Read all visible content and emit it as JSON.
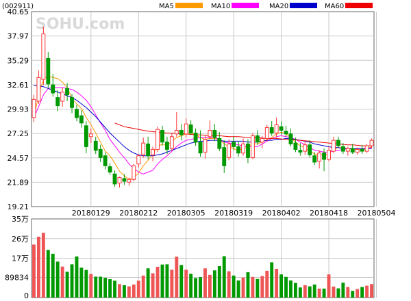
{
  "stock_code": "(002911)",
  "watermark": "SOHU.com",
  "colors": {
    "up": "#ff3333",
    "down": "#009900",
    "grid": "#c8c8c8",
    "frame": "#666666"
  },
  "legend": [
    {
      "label": "MA5",
      "color": "#ff9900"
    },
    {
      "label": "MA10",
      "color": "#ff00ff"
    },
    {
      "label": "MA20",
      "color": "#0000cc"
    },
    {
      "label": "MA60",
      "color": "#ee0000"
    }
  ],
  "chart_data": [
    {
      "type": "candlestick",
      "title": "(002911)",
      "ylim": [
        19.21,
        40.65
      ],
      "yticks": [
        "40.65",
        "37.97",
        "35.29",
        "32.61",
        "29.93",
        "27.25",
        "24.57",
        "21.89",
        "19.21"
      ],
      "xticks": [
        {
          "label": "20180129",
          "index": 12
        },
        {
          "label": "20180212",
          "index": 22
        },
        {
          "label": "20180305",
          "index": 32
        },
        {
          "label": "20180319",
          "index": 42
        },
        {
          "label": "20180402",
          "index": 52
        },
        {
          "label": "20180418",
          "index": 62
        },
        {
          "label": "20180504",
          "index": 72
        }
      ],
      "grid": true,
      "legend_position": "top-right",
      "candles": [
        [
          29.0,
          31.5,
          28.5,
          31.0
        ],
        [
          30.8,
          34.2,
          30.5,
          33.4
        ],
        [
          33.2,
          39.0,
          32.6,
          38.2
        ],
        [
          35.5,
          36.2,
          32.2,
          32.7
        ],
        [
          32.6,
          33.8,
          31.3,
          31.7
        ],
        [
          31.2,
          32.0,
          29.7,
          30.3
        ],
        [
          30.8,
          32.3,
          30.2,
          31.8
        ],
        [
          32.2,
          32.8,
          30.8,
          31.5
        ],
        [
          31.2,
          31.6,
          29.5,
          30.1
        ],
        [
          29.9,
          30.4,
          28.6,
          29.0
        ],
        [
          29.2,
          29.8,
          27.9,
          28.4
        ],
        [
          28.1,
          28.6,
          25.1,
          25.8
        ],
        [
          26.9,
          27.8,
          26.2,
          27.2
        ],
        [
          26.4,
          26.9,
          25.0,
          25.4
        ],
        [
          25.5,
          26.0,
          24.1,
          24.6
        ],
        [
          24.8,
          25.2,
          23.3,
          23.7
        ],
        [
          23.6,
          24.0,
          22.7,
          23.0
        ],
        [
          22.8,
          23.2,
          21.4,
          21.7
        ],
        [
          21.8,
          22.5,
          21.3,
          22.4
        ],
        [
          22.3,
          22.8,
          21.6,
          22.0
        ],
        [
          21.9,
          22.4,
          21.5,
          22.2
        ],
        [
          22.2,
          23.9,
          22.0,
          23.7
        ],
        [
          23.9,
          25.0,
          23.5,
          24.8
        ],
        [
          24.9,
          26.8,
          24.6,
          26.2
        ],
        [
          26.1,
          26.9,
          24.4,
          24.8
        ],
        [
          24.9,
          25.8,
          24.2,
          25.5
        ],
        [
          25.5,
          28.0,
          25.2,
          27.7
        ],
        [
          27.6,
          28.1,
          25.9,
          26.3
        ],
        [
          26.3,
          26.9,
          25.0,
          25.5
        ],
        [
          25.6,
          27.3,
          25.3,
          26.9
        ],
        [
          27.2,
          29.6,
          26.9,
          27.6
        ],
        [
          27.6,
          28.3,
          26.5,
          27.1
        ],
        [
          27.2,
          28.9,
          26.8,
          28.3
        ],
        [
          28.2,
          28.7,
          27.1,
          27.3
        ],
        [
          27.3,
          27.8,
          25.9,
          26.3
        ],
        [
          26.3,
          27.6,
          24.7,
          25.1
        ],
        [
          25.2,
          27.0,
          24.5,
          26.6
        ],
        [
          26.9,
          28.7,
          26.6,
          27.6
        ],
        [
          27.6,
          28.3,
          26.4,
          26.8
        ],
        [
          26.7,
          27.4,
          25.3,
          25.6
        ],
        [
          25.7,
          26.5,
          22.9,
          23.7
        ],
        [
          24.6,
          26.6,
          24.3,
          26.1
        ],
        [
          26.3,
          26.9,
          25.4,
          25.8
        ],
        [
          25.8,
          26.4,
          24.7,
          25.1
        ],
        [
          25.1,
          26.7,
          24.8,
          26.1
        ],
        [
          26.1,
          26.6,
          24.0,
          24.6
        ],
        [
          24.6,
          27.3,
          24.4,
          27.0
        ],
        [
          27.0,
          27.6,
          26.0,
          26.3
        ],
        [
          26.3,
          27.0,
          25.6,
          26.7
        ],
        [
          26.7,
          28.2,
          26.4,
          27.9
        ],
        [
          27.9,
          28.6,
          27.0,
          27.3
        ],
        [
          27.3,
          29.0,
          26.8,
          28.2
        ],
        [
          28.0,
          28.6,
          27.1,
          27.6
        ],
        [
          27.5,
          28.1,
          26.9,
          27.2
        ],
        [
          27.2,
          27.8,
          25.8,
          26.1
        ],
        [
          26.2,
          26.8,
          25.2,
          25.5
        ],
        [
          25.4,
          26.2,
          24.8,
          25.2
        ],
        [
          25.3,
          26.4,
          24.9,
          26.0
        ],
        [
          26.0,
          26.5,
          24.6,
          24.9
        ],
        [
          24.8,
          25.2,
          23.8,
          24.1
        ],
        [
          24.2,
          25.4,
          23.4,
          25.1
        ],
        [
          25.1,
          25.6,
          23.1,
          24.4
        ],
        [
          24.4,
          25.8,
          24.2,
          25.4
        ],
        [
          25.3,
          26.9,
          25.1,
          26.5
        ],
        [
          26.5,
          26.9,
          25.7,
          25.9
        ],
        [
          25.8,
          26.2,
          25.0,
          25.3
        ],
        [
          25.3,
          25.8,
          24.8,
          25.6
        ],
        [
          25.6,
          26.1,
          25.0,
          25.2
        ],
        [
          25.2,
          25.7,
          24.9,
          25.5
        ],
        [
          25.5,
          26.0,
          25.0,
          25.3
        ],
        [
          25.3,
          26.1,
          25.1,
          25.9
        ],
        [
          25.9,
          26.7,
          25.6,
          26.5
        ]
      ],
      "ma": [
        [
          29.0,
          31.5,
          33.2,
          33.6,
          33.4,
          33.3,
          32.9,
          32.3,
          31.1,
          30.5,
          30.0,
          29.0,
          28.2,
          27.3,
          26.3,
          25.3,
          24.8,
          24.0,
          23.1,
          22.6,
          22.2,
          22.4,
          22.9,
          23.7,
          24.3,
          25.0,
          25.8,
          26.1,
          25.9,
          26.4,
          26.8,
          27.0,
          27.2,
          27.3,
          27.1,
          26.8,
          26.6,
          26.7,
          26.7,
          26.6,
          26.1,
          25.8,
          25.6,
          25.3,
          25.7,
          25.8,
          26.1,
          26.1,
          26.3,
          26.6,
          26.8,
          27.2,
          27.4,
          27.2,
          26.8,
          26.3,
          25.9,
          25.7,
          25.3,
          25.0,
          24.9,
          24.9,
          25.0,
          25.5,
          25.7,
          25.7,
          25.6,
          25.5,
          25.5,
          25.4,
          25.6,
          25.8
        ],
        [
          29.0,
          30.2,
          31.5,
          32.2,
          32.3,
          32.3,
          32.3,
          32.2,
          32.1,
          31.8,
          31.4,
          30.9,
          30.2,
          29.3,
          28.4,
          27.6,
          26.6,
          25.9,
          25.2,
          24.6,
          23.9,
          23.4,
          23.0,
          22.8,
          23.0,
          23.2,
          23.9,
          24.4,
          24.8,
          25.3,
          25.8,
          26.2,
          26.5,
          26.6,
          26.7,
          26.8,
          26.8,
          26.8,
          26.8,
          26.6,
          26.3,
          26.2,
          26.1,
          26.0,
          25.9,
          25.8,
          25.8,
          25.8,
          26.1,
          26.4,
          26.7,
          26.9,
          27.0,
          26.9,
          26.8,
          26.6,
          26.3,
          26.0,
          25.7,
          25.4,
          25.3,
          25.2,
          25.2,
          25.3,
          25.4,
          25.5,
          25.6,
          25.6,
          25.6,
          25.6,
          25.6,
          25.7
        ],
        [
          32.5,
          32.5,
          32.4,
          32.2,
          32.0,
          31.8,
          31.6,
          31.4,
          31.2,
          30.9,
          30.5,
          30.1,
          29.6,
          29.1,
          28.5,
          27.9,
          27.3,
          26.8,
          26.3,
          25.8,
          25.4,
          25.1,
          24.9,
          24.8,
          24.8,
          24.8,
          24.9,
          25.0,
          25.2,
          25.4,
          25.6,
          25.8,
          26.0,
          26.2,
          26.3,
          26.4,
          26.4,
          26.5,
          26.5,
          26.5,
          26.4,
          26.4,
          26.4,
          26.4,
          26.4,
          26.3,
          26.3,
          26.3,
          26.4,
          26.5,
          26.5,
          26.6,
          26.6,
          26.7,
          26.7,
          26.6,
          26.5,
          26.4,
          26.3,
          26.1,
          26.0,
          25.9,
          25.8,
          25.7,
          25.7,
          25.6,
          25.6,
          25.6,
          25.6,
          25.6,
          25.6,
          25.6
        ],
        [
          null,
          null,
          null,
          null,
          null,
          null,
          null,
          null,
          null,
          null,
          null,
          null,
          null,
          null,
          null,
          null,
          null,
          28.4,
          28.2,
          28.0,
          27.9,
          27.8,
          27.7,
          27.6,
          27.5,
          27.45,
          27.4,
          27.35,
          27.3,
          27.3,
          27.25,
          27.2,
          27.2,
          27.15,
          27.1,
          27.1,
          27.05,
          27.0,
          27.0,
          27.0,
          26.95,
          26.9,
          26.9,
          26.9,
          26.85,
          26.8,
          26.8,
          26.8,
          26.75,
          26.7,
          26.7,
          26.7,
          26.65,
          26.6,
          26.6,
          26.55,
          26.5,
          26.45,
          26.4,
          26.35,
          26.3,
          26.25,
          26.2,
          26.15,
          26.1,
          26.05,
          26.0,
          26.0,
          25.95,
          25.9,
          25.9,
          25.9
        ]
      ]
    },
    {
      "type": "bar",
      "title": "Volume",
      "ylim": [
        0,
        350000
      ],
      "yticks": [
        {
          "label": "35万",
          "value": 350000
        },
        {
          "label": "26万",
          "value": 262500
        },
        {
          "label": "17万",
          "value": 175000
        },
        {
          "label": "89834",
          "value": 89834
        },
        {
          "label": "0",
          "value": 0
        }
      ],
      "values": [
        236000,
        271000,
        288000,
        212000,
        195000,
        160000,
        138000,
        115000,
        148000,
        183000,
        133000,
        123000,
        105000,
        93000,
        93000,
        88000,
        82000,
        75000,
        60000,
        55000,
        50000,
        58000,
        75000,
        98000,
        130000,
        108000,
        137000,
        147000,
        148000,
        124000,
        182000,
        145000,
        124000,
        106000,
        87000,
        91000,
        130000,
        101000,
        121000,
        140000,
        184000,
        117000,
        98000,
        76000,
        89000,
        113000,
        92000,
        83000,
        96000,
        119000,
        157000,
        128000,
        103000,
        92000,
        76000,
        65000,
        45000,
        55000,
        50000,
        58000,
        40000,
        40000,
        103000,
        49000,
        41000,
        66000,
        47000,
        30000,
        38000,
        47000,
        53000,
        60000
      ]
    }
  ]
}
